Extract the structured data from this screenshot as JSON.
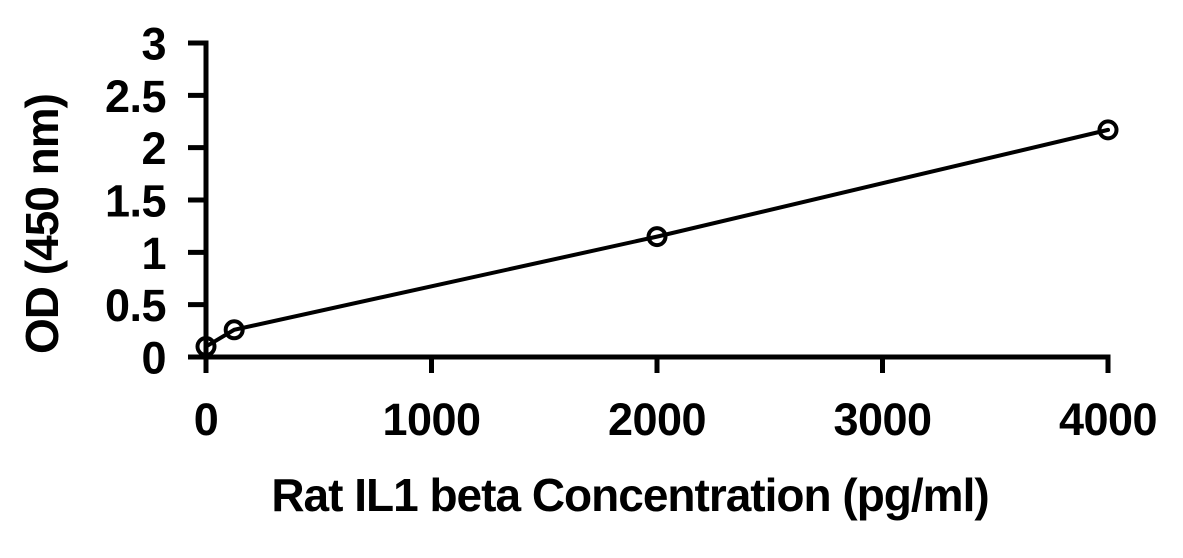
{
  "page": {
    "background_color": "#ffffff"
  },
  "chart_data": {
    "type": "line",
    "style": "standard-curve: straight connecting line with open circle markers, no grid, no legend",
    "xlabel": "Rat IL1 beta Concentration (pg/ml)",
    "ylabel": "OD (450 nm)",
    "x": [
      0,
      125,
      2000,
      4000
    ],
    "y": [
      0.1,
      0.26,
      1.15,
      2.17
    ],
    "xlim": [
      0,
      4000
    ],
    "ylim": [
      0,
      3
    ],
    "x_ticks": [
      0,
      1000,
      2000,
      3000,
      4000
    ],
    "x_tick_labels": [
      "0",
      "1000",
      "2000",
      "3000",
      "4000"
    ],
    "y_ticks": [
      0,
      0.5,
      1,
      1.5,
      2,
      2.5,
      3
    ],
    "y_tick_labels": [
      "0",
      "0.5",
      "1",
      "1.5",
      "2",
      "2.5",
      "3"
    ],
    "grid": false,
    "legend": "none",
    "marker": "open-circle",
    "colors": {
      "axis": "#000000",
      "line": "#000000",
      "marker_stroke": "#000000",
      "marker_fill": "none",
      "text": "#000000",
      "background": "#ffffff"
    }
  }
}
